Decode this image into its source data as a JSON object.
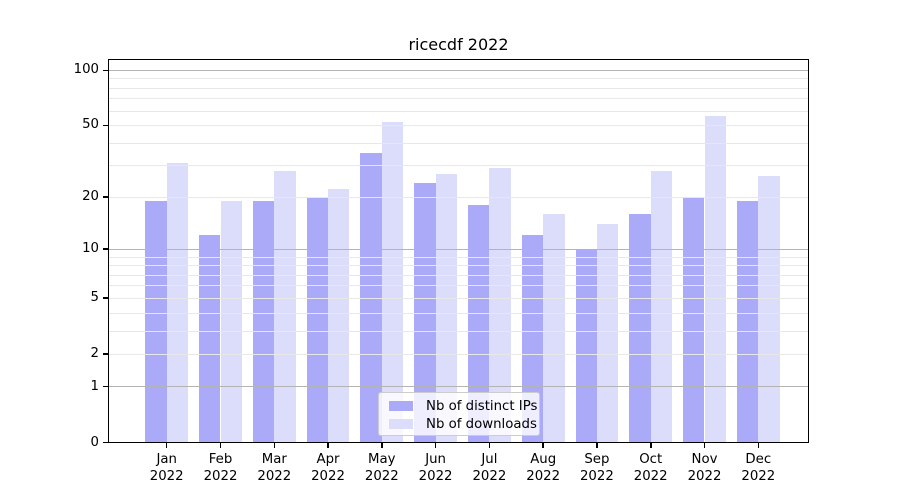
{
  "title": "ricecdf 2022",
  "chart_data": {
    "type": "bar",
    "title": "ricecdf 2022",
    "categories": [
      "Jan",
      "Feb",
      "Mar",
      "Apr",
      "May",
      "Jun",
      "Jul",
      "Aug",
      "Sep",
      "Oct",
      "Nov",
      "Dec"
    ],
    "x_year_label": "2022",
    "series": [
      {
        "name": "Nb of distinct IPs",
        "color": "#aaaaf8",
        "values": [
          19,
          12,
          19,
          20,
          35,
          24,
          18,
          12,
          10,
          16,
          20,
          19
        ]
      },
      {
        "name": "Nb of downloads",
        "color": "#dcdcfb",
        "values": [
          31,
          19,
          28,
          22,
          52,
          27,
          29,
          16,
          14,
          28,
          56,
          26
        ]
      }
    ],
    "y_axis": {
      "scale": "log1p",
      "tick_labels": [
        100,
        50,
        20,
        10,
        5,
        2,
        1,
        0
      ],
      "ylim": [
        0,
        116
      ]
    },
    "grid": true,
    "gridline_major_values": [
      1,
      10,
      100
    ],
    "gridline_minor_values": [
      2,
      3,
      4,
      5,
      6,
      7,
      8,
      9,
      20,
      30,
      40,
      50,
      60,
      70,
      80,
      90
    ],
    "gridline_major_color": "#b4b4b4",
    "gridline_minor_color": "#e8e8e8",
    "legend_position": "lower center"
  }
}
